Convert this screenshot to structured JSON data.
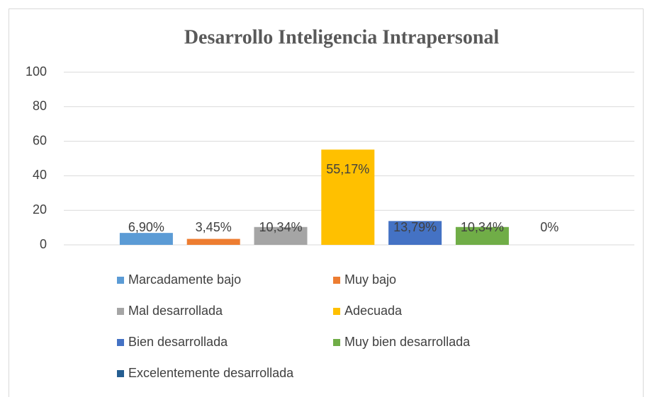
{
  "chart_data": {
    "type": "bar",
    "title": "Desarrollo Inteligencia Intrapersonal",
    "categories": [
      null
    ],
    "series": [
      {
        "name": "Marcadamente bajo",
        "color": "#5b9bd5",
        "values": [
          6.9
        ],
        "value_labels": [
          "6,90%"
        ]
      },
      {
        "name": "Muy bajo",
        "color": "#ed7d31",
        "values": [
          3.45
        ],
        "value_labels": [
          "3,45%"
        ]
      },
      {
        "name": "Mal desarrollada",
        "color": "#a5a5a5",
        "values": [
          10.34
        ],
        "value_labels": [
          "10,34%"
        ]
      },
      {
        "name": "Adecuada",
        "color": "#ffc000",
        "values": [
          55.17
        ],
        "value_labels": [
          "55,17%"
        ]
      },
      {
        "name": "Bien desarrollada",
        "color": "#4472c4",
        "values": [
          13.79
        ],
        "value_labels": [
          "13,79%"
        ]
      },
      {
        "name": "Muy bien desarrollada",
        "color": "#70ad47",
        "values": [
          10.34
        ],
        "value_labels": [
          "10,34%"
        ]
      },
      {
        "name": "Excelentemente desarrollada",
        "color": "#255e91",
        "values": [
          0
        ],
        "value_labels": [
          "0%"
        ]
      }
    ],
    "ylim": [
      0,
      100
    ],
    "yticks": [
      0,
      20,
      40,
      60,
      80,
      100
    ],
    "grid": true,
    "legend": "bottom"
  }
}
